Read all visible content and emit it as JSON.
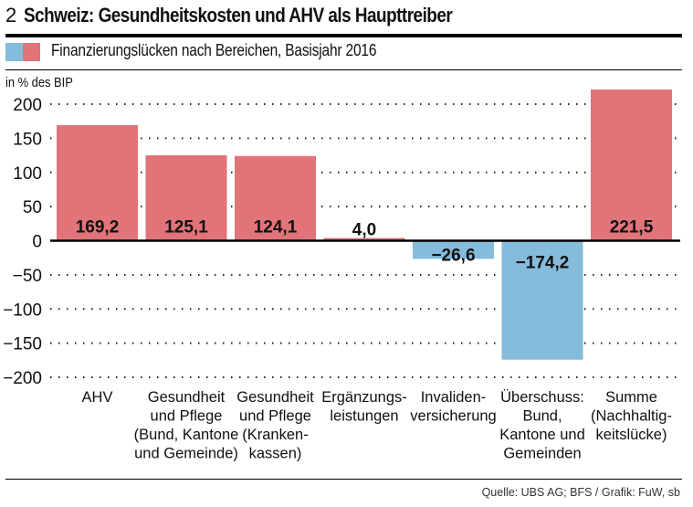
{
  "header": {
    "number": "2",
    "title": "Schweiz: Gesundheitskosten und AHV als Haupttreiber",
    "legend_text": "Finanzierungslücken nach Bereichen, Basisjahr 2016",
    "unit": "in % des BIP"
  },
  "footer": {
    "source": "Quelle: UBS AG; BFS / Grafik: FuW, sb"
  },
  "colors": {
    "positive": "#e07479",
    "negative": "#85bbdb",
    "text": "#111111"
  },
  "chart_data": {
    "type": "bar",
    "title": "Schweiz: Gesundheitskosten und AHV als Haupttreiber",
    "subtitle": "Finanzierungslücken nach Bereichen, Basisjahr 2016",
    "xlabel": "",
    "ylabel": "in % des BIP",
    "ylim": [
      -200,
      200
    ],
    "yticks": [
      200,
      150,
      100,
      50,
      0,
      -50,
      -100,
      -150,
      -200
    ],
    "ytick_labels": [
      "200",
      "150",
      "100",
      "50",
      "0",
      "−50",
      "−100",
      "−150",
      "−200"
    ],
    "grid": "dotted-horizontal",
    "legend": "top-left",
    "categories": [
      [
        "AHV"
      ],
      [
        "Gesundheit",
        "und Pflege",
        "(Bund, Kantone",
        "und Gemeinde)"
      ],
      [
        "Gesundheit",
        "und Pflege",
        "(Kranken-",
        "kassen)"
      ],
      [
        "Ergänzungs-",
        "leistungen"
      ],
      [
        "Invaliden-",
        "versicherung"
      ],
      [
        "Überschuss:",
        "Bund,",
        "Kantone und",
        "Gemeinden"
      ],
      [
        "Summe",
        "(Nachhaltig-",
        "keitslücke)"
      ]
    ],
    "values": [
      169.2,
      125.1,
      124.1,
      4.0,
      -26.6,
      -174.2,
      221.5
    ],
    "value_labels": [
      "169,2",
      "125,1",
      "124,1",
      "4,0",
      "−26,6",
      "−174,2",
      "221,5"
    ]
  }
}
